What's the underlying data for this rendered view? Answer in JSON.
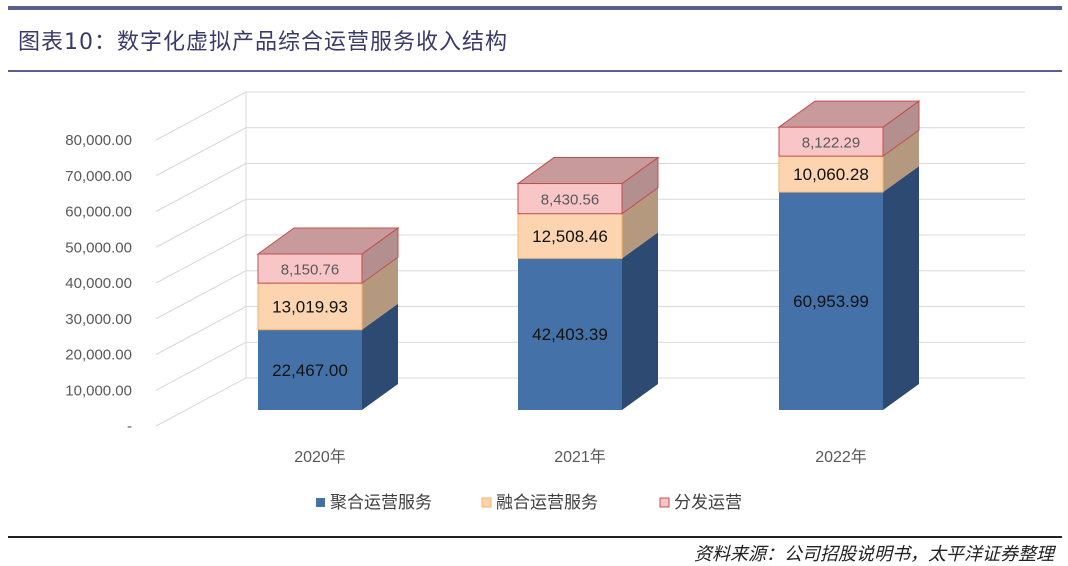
{
  "header": {
    "title": "图表10：数字化虚拟产品综合运营服务收入结构"
  },
  "footer": {
    "source": "资料来源：公司招股说明书，太平洋证券整理"
  },
  "chart_data": {
    "type": "bar",
    "stacked": true,
    "three_d": true,
    "title": "",
    "xlabel": "",
    "ylabel": "",
    "categories": [
      "2020年",
      "2021年",
      "2022年"
    ],
    "y_ticks": [
      "-",
      "10,000.00",
      "20,000.00",
      "30,000.00",
      "40,000.00",
      "50,000.00",
      "60,000.00",
      "70,000.00",
      "80,000.00"
    ],
    "ylim": [
      0,
      80000
    ],
    "grid": true,
    "legend_position": "bottom",
    "series": [
      {
        "name": "聚合运营服务",
        "values": [
          22467.0,
          42403.39,
          60953.99
        ],
        "labels": [
          "22,467.00",
          "42,403.39",
          "60,953.99"
        ],
        "color": "#4472a8"
      },
      {
        "name": "融合运营服务",
        "values": [
          13019.93,
          12508.46,
          10060.28
        ],
        "labels": [
          "13,019.93",
          "12,508.46",
          "10,060.28"
        ],
        "color": "#fcd5b0"
      },
      {
        "name": "分发运营",
        "values": [
          8150.76,
          8430.56,
          8122.29
        ],
        "labels": [
          "8,150.76",
          "8,430.56",
          "8,122.29"
        ],
        "color": "#f9c6c8"
      }
    ]
  }
}
